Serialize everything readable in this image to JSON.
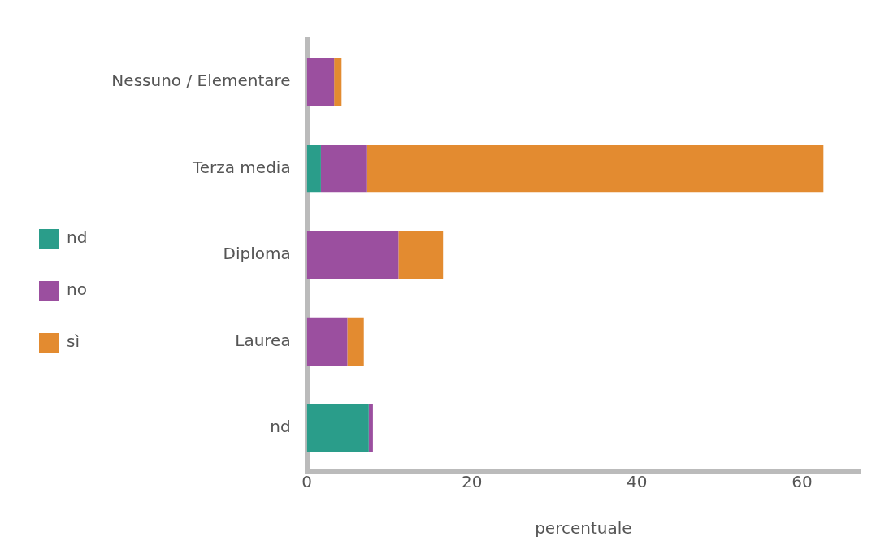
{
  "chart_data": {
    "type": "bar",
    "orientation": "horizontal",
    "stacked": true,
    "xlabel": "percentuale",
    "categories": [
      "Nessuno / Elementare",
      "Terza media",
      "Diploma",
      "Laurea",
      "nd"
    ],
    "series": [
      {
        "name": "nd",
        "color": "#2a9d8a",
        "values": [
          0,
          1.7,
          0,
          0,
          7.5
        ]
      },
      {
        "name": "no",
        "color": "#9b4f9f",
        "values": [
          3.3,
          5.6,
          11.1,
          4.9,
          0.5
        ]
      },
      {
        "name": "sì",
        "color": "#e38b30",
        "values": [
          0.9,
          55.3,
          5.4,
          2.0,
          0
        ]
      }
    ],
    "xlim": [
      0,
      67
    ],
    "xticks": [
      0,
      20,
      40,
      60
    ],
    "grid": false,
    "legend": "left"
  }
}
